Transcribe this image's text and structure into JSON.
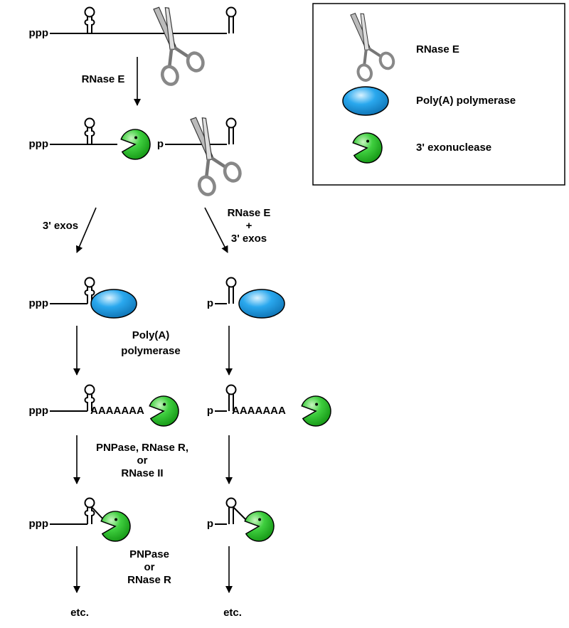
{
  "legend": {
    "items": [
      "RNase E",
      "Poly(A) polymerase",
      "3' exonuclease"
    ]
  },
  "rows": [
    {
      "left": "ppp"
    },
    {
      "left": "ppp",
      "right": "p"
    },
    {
      "left": "ppp",
      "right": "p"
    },
    {
      "left": "ppp",
      "left_tail": "AAAAAAA",
      "right": "p",
      "right_tail": "AAAAAAA"
    },
    {
      "left": "ppp",
      "right": "p"
    },
    {
      "left": "etc.",
      "right": "etc."
    }
  ],
  "arrow_labels": [
    [
      "RNase E"
    ],
    [
      "3' exos"
    ],
    [
      "RNase E",
      "+",
      "3' exos"
    ],
    [
      "Poly(A)",
      "polymerase"
    ],
    [
      "PNPase, RNase R,",
      "or",
      "RNase II"
    ],
    [
      "PNPase",
      "or",
      "RNase R"
    ]
  ]
}
